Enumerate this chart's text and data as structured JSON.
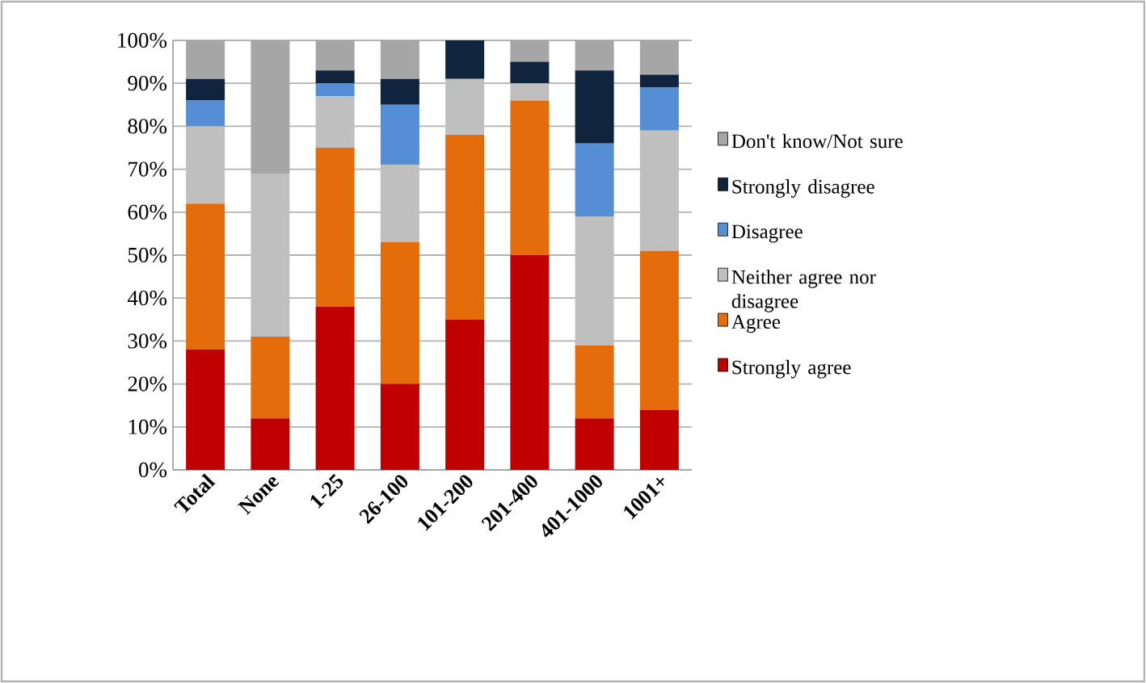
{
  "chart_data": {
    "type": "bar",
    "stacked": true,
    "categories": [
      "Total",
      "None",
      "1-25",
      "26-100",
      "101-200",
      "201-400",
      "401-1000",
      "1001+"
    ],
    "series": [
      {
        "name": "Strongly agree",
        "color": "#c00000",
        "values": [
          28,
          12,
          38,
          20,
          35,
          50,
          12,
          14
        ]
      },
      {
        "name": "Agree",
        "color": "#e46c0a",
        "values": [
          34,
          19,
          37,
          33,
          43,
          36,
          17,
          37
        ]
      },
      {
        "name": "Neither agree nor disagree",
        "color": "#bfbfbf",
        "values": [
          18,
          38,
          12,
          18,
          13,
          4,
          30,
          28
        ]
      },
      {
        "name": "Disagree",
        "color": "#558ed5",
        "values": [
          6,
          0,
          3,
          14,
          0,
          0,
          17,
          10
        ]
      },
      {
        "name": "Strongly disagree",
        "color": "#10243e",
        "values": [
          5,
          0,
          3,
          6,
          9,
          5,
          17,
          3
        ]
      },
      {
        "name": "Don't know/Not sure",
        "color": "#a6a6a6",
        "values": [
          9,
          31,
          7,
          9,
          0,
          5,
          7,
          8
        ]
      }
    ],
    "ylim": [
      0,
      100
    ],
    "yticks": [
      {
        "value": 0,
        "label": "0%"
      },
      {
        "value": 10,
        "label": "10%"
      },
      {
        "value": 20,
        "label": "20%"
      },
      {
        "value": 30,
        "label": "30%"
      },
      {
        "value": 40,
        "label": "40%"
      },
      {
        "value": 50,
        "label": "50%"
      },
      {
        "value": 60,
        "label": "60%"
      },
      {
        "value": 70,
        "label": "70%"
      },
      {
        "value": 80,
        "label": "80%"
      },
      {
        "value": 90,
        "label": "90%"
      },
      {
        "value": 100,
        "label": "100%"
      }
    ],
    "grid": "y",
    "legend": "right"
  }
}
